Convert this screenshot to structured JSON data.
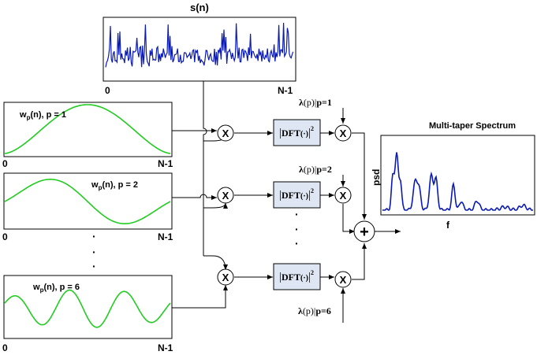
{
  "signal": {
    "title": "s(n)",
    "axis_start": "0",
    "axis_end": "N-1",
    "color": "#0a1ab4"
  },
  "tapers": [
    {
      "label": "w",
      "sub": "p",
      "rest": "(n), p = 1",
      "axis_start": "0",
      "axis_end": "N-1",
      "color": "#22cc22"
    },
    {
      "label": "w",
      "sub": "p",
      "rest": "(n), p = 2",
      "axis_start": "0",
      "axis_end": "N-1",
      "color": "#22cc22"
    },
    {
      "label": "w",
      "sub": "p",
      "rest": "(n), p = 6",
      "axis_start": "0",
      "axis_end": "N-1",
      "color": "#22cc22"
    }
  ],
  "multiplier_symbol": "X",
  "dft": {
    "main": "DFT",
    "arg": "(·)",
    "power": "2"
  },
  "weights": [
    {
      "lambda": "λ",
      "arg": "(p)",
      "cond": "p=1"
    },
    {
      "lambda": "λ",
      "arg": "(p)",
      "cond": "p=2"
    },
    {
      "lambda": "λ",
      "arg": "(p)",
      "cond": "p=6"
    }
  ],
  "sum_symbol": "+",
  "ellipsis": "·",
  "output": {
    "title": "Multi-taper Spectrum",
    "ylabel": "psd",
    "xlabel": "f",
    "color": "#0a1ab4"
  }
}
